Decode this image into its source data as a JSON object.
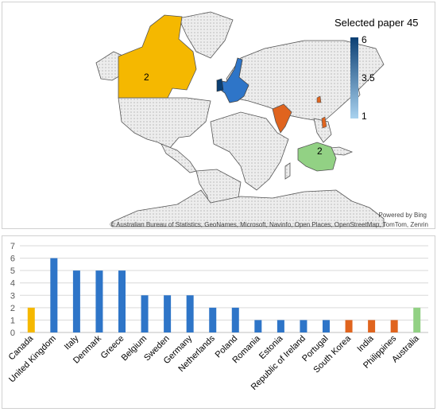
{
  "map": {
    "title": "Selected paper 45",
    "legend": {
      "max_label": "6",
      "mid_label": "3.5",
      "min_label": "1",
      "color_high": "#0b3f73",
      "color_low": "#a9d2ef"
    },
    "region_labels": [
      {
        "region": "Canada",
        "label": "2",
        "color": "#f5b800"
      },
      {
        "region": "Australia",
        "label": "2",
        "color": "#92d184"
      }
    ],
    "highlight_colors": {
      "europe": "#2e75c8",
      "india": "#e0641e",
      "base_land": "#e9e9e9"
    },
    "powered_by": "Powered by Bing",
    "attribution": "© Australian Bureau of Statistics, GeoNames, Microsoft, Navinfo, Open Places, OpenStreetMap, TomTom, Zenrin"
  },
  "chart_data": {
    "type": "bar",
    "categories": [
      "Canada",
      "United Kingdom",
      "Italy",
      "Denmark",
      "Greece",
      "Belgium",
      "Sweden",
      "Germany",
      "Netherlands",
      "Poland",
      "Romania",
      "Estonia",
      "Republic of Ireland",
      "Portugal",
      "South Korea",
      "India",
      "Philippines",
      "Australia"
    ],
    "values": [
      2,
      6,
      5,
      5,
      5,
      3,
      3,
      3,
      2,
      2,
      1,
      1,
      1,
      1,
      1,
      1,
      1,
      2
    ],
    "colors": [
      "#f5b800",
      "#2e75c8",
      "#2e75c8",
      "#2e75c8",
      "#2e75c8",
      "#2e75c8",
      "#2e75c8",
      "#2e75c8",
      "#2e75c8",
      "#2e75c8",
      "#2e75c8",
      "#2e75c8",
      "#2e75c8",
      "#2e75c8",
      "#e0641e",
      "#e0641e",
      "#e0641e",
      "#92d184"
    ],
    "y_ticks": [
      "0",
      "1",
      "2",
      "3",
      "4",
      "5",
      "6",
      "7"
    ],
    "ylim": [
      0,
      7
    ],
    "grid": true
  }
}
